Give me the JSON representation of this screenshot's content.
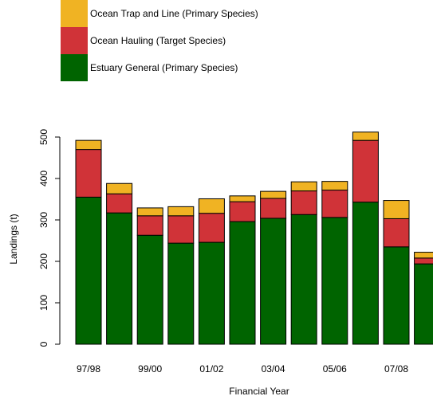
{
  "chart_data": {
    "type": "stacked-bar",
    "xlabel": "Financial Year",
    "ylabel": "Landings (t)",
    "categories": [
      "97/98",
      null,
      "99/00",
      null,
      "01/02",
      null,
      "03/04",
      null,
      "05/06",
      null,
      "07/08",
      null
    ],
    "series": [
      {
        "name": "Estuary General (Primary Species)",
        "color": "#006400",
        "values": [
          355,
          317,
          263,
          244,
          246,
          296,
          304,
          313,
          306,
          343,
          235,
          194
        ]
      },
      {
        "name": "Ocean Hauling (Target Species)",
        "color": "#d03338",
        "values": [
          115,
          46,
          47,
          66,
          70,
          48,
          48,
          57,
          66,
          149,
          68,
          14
        ]
      },
      {
        "name": "Ocean Trap and Line (Primary Species)",
        "color": "#f0b323",
        "values": [
          22,
          25,
          19,
          22,
          35,
          14,
          17,
          22,
          21,
          20,
          44,
          14
        ]
      }
    ],
    "ylim": [
      0,
      500
    ],
    "yticks": [
      0,
      100,
      200,
      300,
      400,
      500
    ]
  }
}
